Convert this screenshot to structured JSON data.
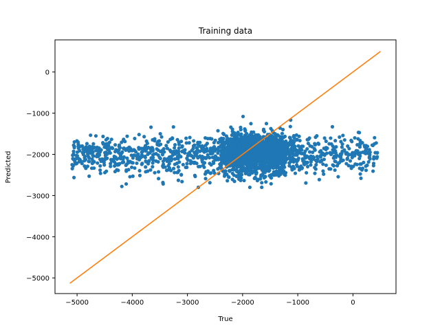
{
  "chart_data": {
    "type": "scatter",
    "title": "Training data",
    "xlabel": "True",
    "ylabel": "Predicted",
    "xlim": [
      -5400,
      780
    ],
    "ylim": [
      -5380,
      780
    ],
    "xticks": [
      -5000,
      -4000,
      -3000,
      -2000,
      -1000,
      0
    ],
    "yticks": [
      -5000,
      -4000,
      -3000,
      -2000,
      -1000,
      0
    ],
    "xtick_labels": [
      "−5000",
      "−4000",
      "−3000",
      "−2000",
      "−1000",
      "0"
    ],
    "ytick_labels": [
      "−5000",
      "−4000",
      "−3000",
      "−2000",
      "−1000",
      "0"
    ],
    "grid": false,
    "series": [
      {
        "kind": "scatter",
        "color": "#1f77b4",
        "point_count": 2200,
        "x_range": [
          -5100,
          450
        ],
        "y_center": -2000,
        "y_spread": 260,
        "dense_region_x": [
          -2300,
          -1200
        ]
      },
      {
        "kind": "line",
        "color": "#ff7f0e",
        "x": [
          -5130,
          500
        ],
        "y": [
          -5130,
          500
        ]
      }
    ]
  }
}
